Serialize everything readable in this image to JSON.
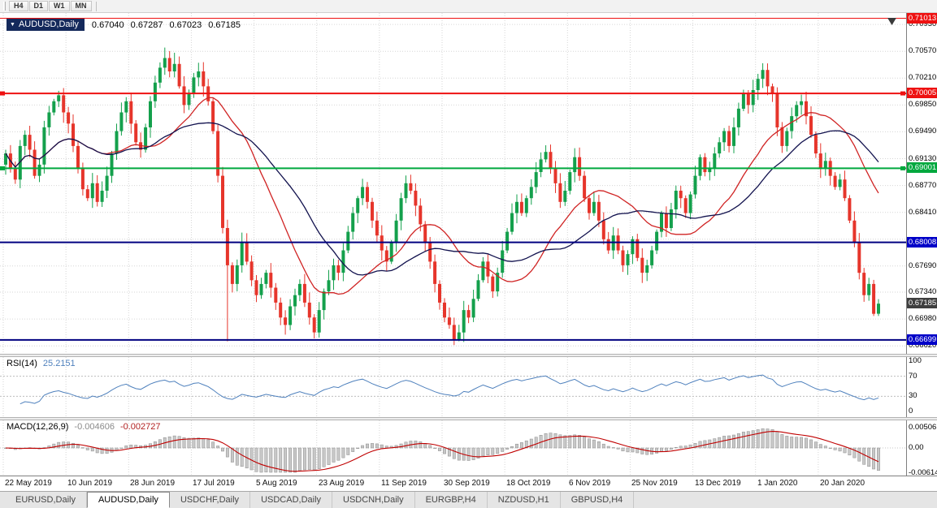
{
  "toolbar": {
    "buttons": [
      "H4",
      "D1",
      "W1",
      "MN"
    ]
  },
  "icons": {
    "symbol_dropdown": "▼"
  },
  "title": {
    "symbol": "AUDUSD,Daily",
    "open": "0.67040",
    "high": "0.67287",
    "low": "0.67023",
    "close": "0.67185"
  },
  "tabs": [
    {
      "label": "EURUSD,Daily",
      "active": false
    },
    {
      "label": "AUDUSD,Daily",
      "active": true
    },
    {
      "label": "USDCHF,Daily",
      "active": false
    },
    {
      "label": "USDCAD,Daily",
      "active": false
    },
    {
      "label": "USDCNH,Daily",
      "active": false
    },
    {
      "label": "EURGBP,H4",
      "active": false
    },
    {
      "label": "NZDUSD,H1",
      "active": false
    },
    {
      "label": "GBPUSD,H4",
      "active": false
    }
  ],
  "chart_data": {
    "type": "candlestick",
    "symbol": "AUDUSD",
    "timeframe": "Daily",
    "ohlc_display": {
      "open": "0.67040",
      "high": "0.67287",
      "low": "0.67023",
      "close": "0.67185"
    },
    "price_range": {
      "min": 0.666,
      "max": 0.7104
    },
    "x_labels": [
      "22 May 2019",
      "10 Jun 2019",
      "28 Jun 2019",
      "17 Jul 2019",
      "5 Aug 2019",
      "23 Aug 2019",
      "11 Sep 2019",
      "30 Sep 2019",
      "18 Oct 2019",
      "6 Nov 2019",
      "25 Nov 2019",
      "13 Dec 2019",
      "1 Jan 2020",
      "20 Jan 2020"
    ],
    "candles_per_label": 13,
    "grid_prices": [
      0.7093,
      0.7057,
      0.7021,
      0.6985,
      0.6949,
      0.6913,
      0.6877,
      0.6841,
      0.6805,
      0.6769,
      0.6734,
      0.6698,
      0.6662
    ],
    "tick_labels": [
      "0.70930",
      "0.70570",
      "0.70210",
      "0.69850",
      "0.69490",
      "0.69130",
      "0.68770",
      "0.68410",
      "0.67690",
      "0.67340",
      "0.66980",
      "0.66620"
    ],
    "badges": [
      {
        "text": "0.71013",
        "color": "#ee1111"
      },
      {
        "text": "0.70005",
        "color": "#ee1111"
      },
      {
        "text": "0.69001",
        "color": "#00a83e"
      },
      {
        "text": "0.68008",
        "color": "#0000c8"
      },
      {
        "text": "0.67185",
        "color": "#3f3f3f"
      },
      {
        "text": "0.66699",
        "color": "#0000c8"
      }
    ],
    "h_lines": [
      {
        "price": 0.71013,
        "color": "#ee1111",
        "width": 1,
        "markers": false
      },
      {
        "price": 0.70005,
        "color": "#ee1111",
        "width": 2,
        "markers": true
      },
      {
        "price": 0.69001,
        "color": "#00a83e",
        "width": 2,
        "markers": true
      },
      {
        "price": 0.68008,
        "color": "#000080",
        "width": 2,
        "markers": false
      },
      {
        "price": 0.66699,
        "color": "#000080",
        "width": 2,
        "markers": false
      }
    ],
    "colors": {
      "up": "#14a04c",
      "down": "#e6352b",
      "grid": "#d6d6d6",
      "ma_fast": "#d02424",
      "ma_slow": "#12124e",
      "macd_fill": "#c8c8c8",
      "macd_stroke": "#8c8c8c",
      "macd_signal": "#c00000"
    },
    "moving_averages": [
      {
        "period": 20,
        "color_key": "ma_fast"
      },
      {
        "period": 30,
        "color_key": "ma_slow"
      }
    ],
    "first_open": 0.6905,
    "closes": [
      0.692,
      0.69,
      0.6885,
      0.693,
      0.6945,
      0.6925,
      0.689,
      0.6905,
      0.6955,
      0.6975,
      0.699,
      0.6998,
      0.6975,
      0.696,
      0.693,
      0.69,
      0.6872,
      0.686,
      0.688,
      0.6855,
      0.687,
      0.689,
      0.692,
      0.695,
      0.6975,
      0.699,
      0.696,
      0.6935,
      0.6925,
      0.6955,
      0.699,
      0.7015,
      0.7035,
      0.7048,
      0.703,
      0.704,
      0.701,
      0.6985,
      0.7,
      0.7022,
      0.703,
      0.701,
      0.699,
      0.695,
      0.689,
      0.682,
      0.677,
      0.6745,
      0.677,
      0.68,
      0.6775,
      0.675,
      0.673,
      0.6745,
      0.676,
      0.674,
      0.672,
      0.67,
      0.669,
      0.6715,
      0.673,
      0.6745,
      0.672,
      0.67,
      0.668,
      0.671,
      0.6735,
      0.675,
      0.677,
      0.676,
      0.679,
      0.6815,
      0.684,
      0.686,
      0.6875,
      0.6855,
      0.683,
      0.681,
      0.679,
      0.6775,
      0.68,
      0.683,
      0.686,
      0.688,
      0.687,
      0.685,
      0.6825,
      0.68,
      0.6775,
      0.6745,
      0.672,
      0.67,
      0.669,
      0.667,
      0.668,
      0.671,
      0.67,
      0.6725,
      0.675,
      0.6775,
      0.6755,
      0.6735,
      0.676,
      0.679,
      0.6815,
      0.684,
      0.6855,
      0.684,
      0.686,
      0.6875,
      0.6895,
      0.6912,
      0.6922,
      0.69,
      0.688,
      0.6855,
      0.687,
      0.6895,
      0.6915,
      0.689,
      0.686,
      0.684,
      0.6855,
      0.683,
      0.6805,
      0.679,
      0.681,
      0.679,
      0.677,
      0.6785,
      0.6805,
      0.678,
      0.676,
      0.677,
      0.679,
      0.6815,
      0.684,
      0.682,
      0.6845,
      0.687,
      0.686,
      0.684,
      0.6865,
      0.689,
      0.6915,
      0.6895,
      0.69,
      0.692,
      0.6935,
      0.695,
      0.693,
      0.6955,
      0.698,
      0.7,
      0.6985,
      0.7005,
      0.702,
      0.7032,
      0.701,
      0.7,
      0.6955,
      0.693,
      0.695,
      0.697,
      0.6985,
      0.699,
      0.697,
      0.6945,
      0.692,
      0.69,
      0.691,
      0.689,
      0.6875,
      0.6885,
      0.686,
      0.683,
      0.68,
      0.676,
      0.673,
      0.6745,
      0.6705,
      0.67185
    ],
    "special_high": {
      "11": 0.7004,
      "33": 0.7062,
      "35": 0.7055,
      "157": 0.7041
    },
    "special_low": {
      "46": 0.6668,
      "58": 0.6677,
      "64": 0.6672,
      "93": 0.6663,
      "94": 0.6668,
      "180": 0.6702,
      "181": 0.6702
    },
    "indicators": {
      "rsi": {
        "label": "RSI(14)",
        "value": "25.2151",
        "period": 14,
        "levels": [
          100,
          70,
          30,
          0
        ],
        "dashed_levels": [
          70,
          30
        ],
        "color": "#4f81bd"
      },
      "macd": {
        "label": "MACD(12,26,9)",
        "value1": "-0.004606",
        "value2": "-0.002727",
        "fast": 12,
        "slow": 26,
        "signal": 9,
        "axis": [
          {
            "text": "0.00506",
            "v": 0.00506
          },
          {
            "text": "0.00",
            "v": 0
          },
          {
            "text": "-0.00614",
            "v": -0.00614
          }
        ]
      }
    }
  }
}
